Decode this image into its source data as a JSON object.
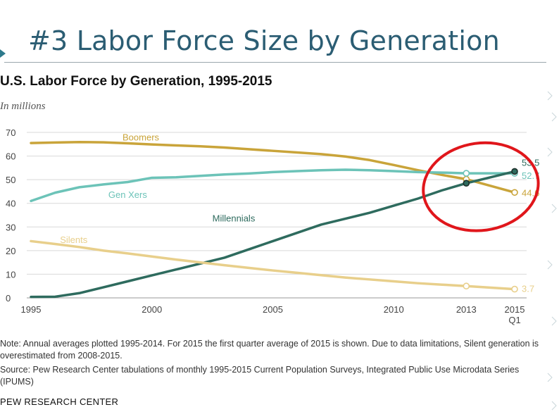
{
  "slide": {
    "title": "#3 Labor Force Size by Generation"
  },
  "chart_title": "U.S. Labor Force by Generation, 1995-2015",
  "chart_subtitle": "In millions",
  "note": "Note: Annual averages plotted 1995-2014. For 2015 the first quarter average of 2015 is shown. Due to data limitations, Silent generation is overestimated from 2008-2015.",
  "source": "Source: Pew Research Center tabulations of monthly 1995-2015 Current Population Surveys, Integrated Public Use Microdata Series (IPUMS)",
  "brand": "PEW RESEARCH CENTER",
  "colors": {
    "boomers": "#c9a43a",
    "genx": "#6cc3b8",
    "millennials": "#2e6b5e",
    "silents": "#e8cf8b",
    "annotation_circle": "#e0161b",
    "grid": "#d9d9d9",
    "axis_text": "#444444"
  },
  "chart_data": {
    "type": "line",
    "x": [
      1995,
      1996,
      1997,
      1998,
      1999,
      2000,
      2001,
      2002,
      2003,
      2004,
      2005,
      2006,
      2007,
      2008,
      2009,
      2010,
      2011,
      2012,
      2013,
      2015
    ],
    "xtick_labels": [
      "1995",
      "2000",
      "2005",
      "2010",
      "2013",
      "2015",
      "Q1"
    ],
    "ylim": [
      0,
      70
    ],
    "yticks": [
      0,
      10,
      20,
      30,
      40,
      50,
      60,
      70
    ],
    "grid": true,
    "series": [
      {
        "name": "Boomers",
        "key": "boomers",
        "values": [
          65.5,
          65.7,
          65.9,
          65.8,
          65.4,
          64.9,
          64.5,
          64.1,
          63.6,
          62.9,
          62.2,
          61.5,
          60.8,
          59.8,
          58.3,
          56.2,
          54.0,
          52.0,
          50.2,
          44.6
        ]
      },
      {
        "name": "Gen Xers",
        "key": "genx",
        "values": [
          41.0,
          44.5,
          46.8,
          48.0,
          49.0,
          50.8,
          51.0,
          51.6,
          52.2,
          52.6,
          53.2,
          53.6,
          54.0,
          54.2,
          54.0,
          53.6,
          53.2,
          53.0,
          52.7,
          52.7
        ]
      },
      {
        "name": "Millennials",
        "key": "millennials",
        "values": [
          0.4,
          0.5,
          2.0,
          4.5,
          7.0,
          9.5,
          12.0,
          14.5,
          17.0,
          20.5,
          24.0,
          27.5,
          31.0,
          33.5,
          36.0,
          39.0,
          42.0,
          45.5,
          48.5,
          53.5
        ]
      },
      {
        "name": "Silents",
        "key": "silents",
        "values": [
          24.0,
          22.8,
          21.5,
          20.0,
          18.8,
          17.5,
          16.2,
          15.0,
          13.8,
          12.7,
          11.6,
          10.6,
          9.6,
          8.6,
          7.8,
          7.0,
          6.2,
          5.6,
          5.0,
          3.7
        ]
      }
    ],
    "end_labels": [
      {
        "series": "millennials",
        "text": "53.5"
      },
      {
        "series": "genx",
        "text": "52.7"
      },
      {
        "series": "boomers",
        "text": "44.6"
      },
      {
        "series": "silents",
        "text": "3.7"
      }
    ],
    "annotation": "red circle highlighting 2013-2015 crossover"
  }
}
